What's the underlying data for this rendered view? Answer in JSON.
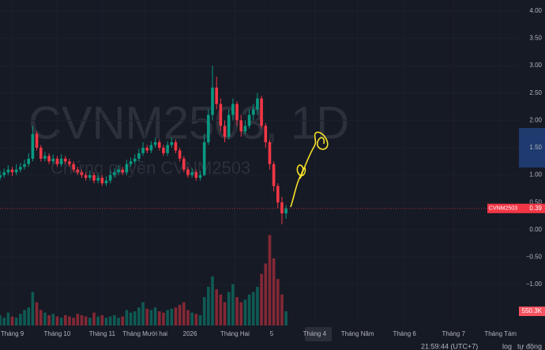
{
  "chart_data": {
    "type": "candlestick",
    "watermark": "CVNM2503, 1D",
    "subtitle": "Chứng quyền CVNM2503",
    "symbol": "CVNM2503",
    "up_color": "#089981",
    "down_color": "#f23645",
    "x": [
      0,
      2,
      4,
      6,
      8,
      10,
      12,
      14,
      16,
      18,
      20,
      22,
      24,
      26,
      28,
      30,
      32,
      34,
      36,
      38,
      40,
      42,
      44,
      46,
      48,
      50,
      52,
      54,
      56,
      58,
      60,
      62,
      64,
      66,
      68,
      70,
      72,
      74,
      76,
      78,
      80,
      82,
      84,
      86,
      88,
      90,
      92,
      94,
      96,
      98,
      100,
      102,
      104,
      106,
      108,
      110,
      112,
      114,
      116,
      118,
      120,
      122,
      124,
      126,
      128,
      130,
      132,
      134,
      136,
      138,
      140
    ],
    "candles": [
      [
        0.95,
        1.08,
        0.9,
        1.0
      ],
      [
        1.0,
        1.12,
        0.95,
        1.05
      ],
      [
        1.05,
        1.18,
        1.0,
        1.1
      ],
      [
        1.1,
        1.15,
        0.98,
        1.05
      ],
      [
        1.05,
        1.2,
        1.0,
        1.1
      ],
      [
        1.1,
        1.22,
        1.05,
        1.15
      ],
      [
        1.15,
        1.28,
        1.1,
        1.2
      ],
      [
        1.2,
        1.4,
        1.15,
        1.3
      ],
      [
        1.3,
        1.9,
        1.25,
        1.75
      ],
      [
        1.75,
        1.8,
        1.45,
        1.5
      ],
      [
        1.5,
        1.55,
        1.25,
        1.3
      ],
      [
        1.3,
        1.42,
        1.25,
        1.35
      ],
      [
        1.35,
        1.4,
        1.2,
        1.25
      ],
      [
        1.25,
        1.38,
        1.2,
        1.3
      ],
      [
        1.3,
        1.35,
        1.15,
        1.2
      ],
      [
        1.2,
        1.38,
        1.15,
        1.3
      ],
      [
        1.3,
        1.35,
        1.2,
        1.25
      ],
      [
        1.25,
        1.3,
        1.15,
        1.2
      ],
      [
        1.2,
        1.25,
        1.05,
        1.1
      ],
      [
        1.1,
        1.15,
        1.0,
        1.05
      ],
      [
        1.05,
        1.1,
        0.95,
        1.0
      ],
      [
        1.0,
        1.05,
        0.9,
        0.95
      ],
      [
        0.95,
        1.08,
        0.9,
        1.0
      ],
      [
        1.0,
        1.05,
        0.85,
        0.9
      ],
      [
        0.9,
        1.02,
        0.85,
        0.95
      ],
      [
        0.95,
        1.0,
        0.8,
        0.85
      ],
      [
        0.85,
        0.98,
        0.8,
        0.9
      ],
      [
        0.9,
        1.08,
        0.85,
        1.0
      ],
      [
        1.0,
        1.12,
        0.95,
        1.05
      ],
      [
        1.05,
        1.18,
        1.0,
        1.1
      ],
      [
        1.1,
        1.15,
        1.0,
        1.05
      ],
      [
        1.05,
        1.28,
        1.0,
        1.2
      ],
      [
        1.2,
        1.32,
        1.15,
        1.25
      ],
      [
        1.25,
        1.38,
        1.2,
        1.3
      ],
      [
        1.3,
        1.48,
        1.25,
        1.4
      ],
      [
        1.4,
        1.6,
        1.35,
        1.5
      ],
      [
        1.5,
        1.55,
        1.4,
        1.45
      ],
      [
        1.45,
        1.62,
        1.4,
        1.55
      ],
      [
        1.55,
        1.68,
        1.5,
        1.6
      ],
      [
        1.6,
        1.65,
        1.45,
        1.5
      ],
      [
        1.5,
        1.55,
        1.35,
        1.4
      ],
      [
        1.4,
        1.62,
        1.35,
        1.55
      ],
      [
        1.55,
        1.68,
        1.5,
        1.6
      ],
      [
        1.6,
        1.65,
        1.4,
        1.45
      ],
      [
        1.45,
        1.5,
        1.25,
        1.3
      ],
      [
        1.3,
        1.35,
        1.05,
        1.1
      ],
      [
        1.1,
        1.15,
        0.95,
        1.0
      ],
      [
        1.0,
        1.12,
        0.95,
        1.05
      ],
      [
        1.05,
        1.1,
        0.9,
        0.95
      ],
      [
        0.95,
        1.08,
        0.9,
        1.0
      ],
      [
        1.0,
        1.75,
        0.98,
        1.6
      ],
      [
        1.6,
        2.2,
        1.55,
        2.1
      ],
      [
        2.1,
        3.0,
        2.0,
        2.6
      ],
      [
        2.6,
        2.8,
        2.2,
        2.3
      ],
      [
        2.3,
        2.4,
        1.8,
        1.9
      ],
      [
        1.9,
        2.0,
        1.6,
        1.7
      ],
      [
        1.7,
        2.2,
        1.65,
        2.1
      ],
      [
        2.1,
        2.4,
        2.0,
        2.3
      ],
      [
        2.3,
        2.35,
        1.9,
        2.0
      ],
      [
        2.0,
        2.1,
        1.7,
        1.8
      ],
      [
        1.8,
        2.0,
        1.75,
        1.9
      ],
      [
        1.9,
        2.2,
        1.85,
        2.1
      ],
      [
        2.1,
        2.3,
        2.0,
        2.2
      ],
      [
        2.2,
        2.5,
        2.1,
        2.4
      ],
      [
        2.4,
        2.45,
        1.85,
        1.9
      ],
      [
        1.9,
        1.95,
        1.5,
        1.6
      ],
      [
        1.6,
        1.65,
        1.1,
        1.2
      ],
      [
        1.2,
        1.25,
        0.7,
        0.8
      ],
      [
        0.8,
        0.85,
        0.4,
        0.5
      ],
      [
        0.5,
        0.6,
        0.1,
        0.3
      ],
      [
        0.3,
        0.45,
        0.2,
        0.39
      ]
    ],
    "volume": [
      400000,
      300000,
      500000,
      350000,
      300000,
      450000,
      600000,
      700000,
      1300000,
      900000,
      600000,
      500000,
      400000,
      450000,
      350000,
      300000,
      400000,
      350000,
      300000,
      450000,
      400000,
      350000,
      300000,
      500000,
      350000,
      400000,
      300000,
      350000,
      400000,
      300000,
      350000,
      600000,
      500000,
      550000,
      700000,
      900000,
      650000,
      600000,
      700000,
      550000,
      500000,
      600000,
      650000,
      700000,
      800000,
      900000,
      600000,
      500000,
      450000,
      400000,
      1100000,
      1500000,
      1900000,
      1400000,
      1200000,
      900000,
      1300000,
      1600000,
      1100000,
      900000,
      1000000,
      1200000,
      1300000,
      1500000,
      2000000,
      2400000,
      3500000,
      2600000,
      1800000,
      1200000,
      550300
    ],
    "volume_label": "550.3K",
    "vlim": [
      0,
      3670000
    ],
    "xlim": [
      0,
      254
    ],
    "ylim": [
      -1.75,
      4.2
    ],
    "yticks": [
      {
        "value": 4,
        "label": "4.00"
      },
      {
        "value": 3.5,
        "label": "3.50"
      },
      {
        "value": 3,
        "label": "3.00"
      },
      {
        "value": 2.5,
        "label": "2.50"
      },
      {
        "value": 2,
        "label": "2.00"
      },
      {
        "value": 1.5,
        "label": "1.50"
      },
      {
        "value": 1,
        "label": "1.00"
      },
      {
        "value": 0.5,
        "label": "0.50"
      },
      {
        "value": 0,
        "label": "0.00"
      },
      {
        "value": -0.5,
        "label": "−0.50"
      },
      {
        "value": -1,
        "label": "−1.00"
      }
    ],
    "xticks": [
      {
        "value": 6,
        "label": "Tháng 9"
      },
      {
        "value": 28,
        "label": "Tháng 10"
      },
      {
        "value": 50,
        "label": "Tháng 11"
      },
      {
        "value": 71,
        "label": "Tháng Mười hai"
      },
      {
        "value": 93,
        "label": "2026"
      },
      {
        "value": 115,
        "label": "Tháng Hai"
      },
      {
        "value": 133,
        "label": "5"
      },
      {
        "value": 154,
        "label": "Tháng 4"
      },
      {
        "value": 175,
        "label": "Tháng Năm"
      },
      {
        "value": 198,
        "label": "Tháng 6"
      },
      {
        "value": 222,
        "label": "Tháng 7"
      },
      {
        "value": 245,
        "label": "Tháng Tám"
      }
    ],
    "status": {
      "time": "21:59:44 (UTC+7)",
      "log": "log",
      "auto": "tự động"
    }
  }
}
